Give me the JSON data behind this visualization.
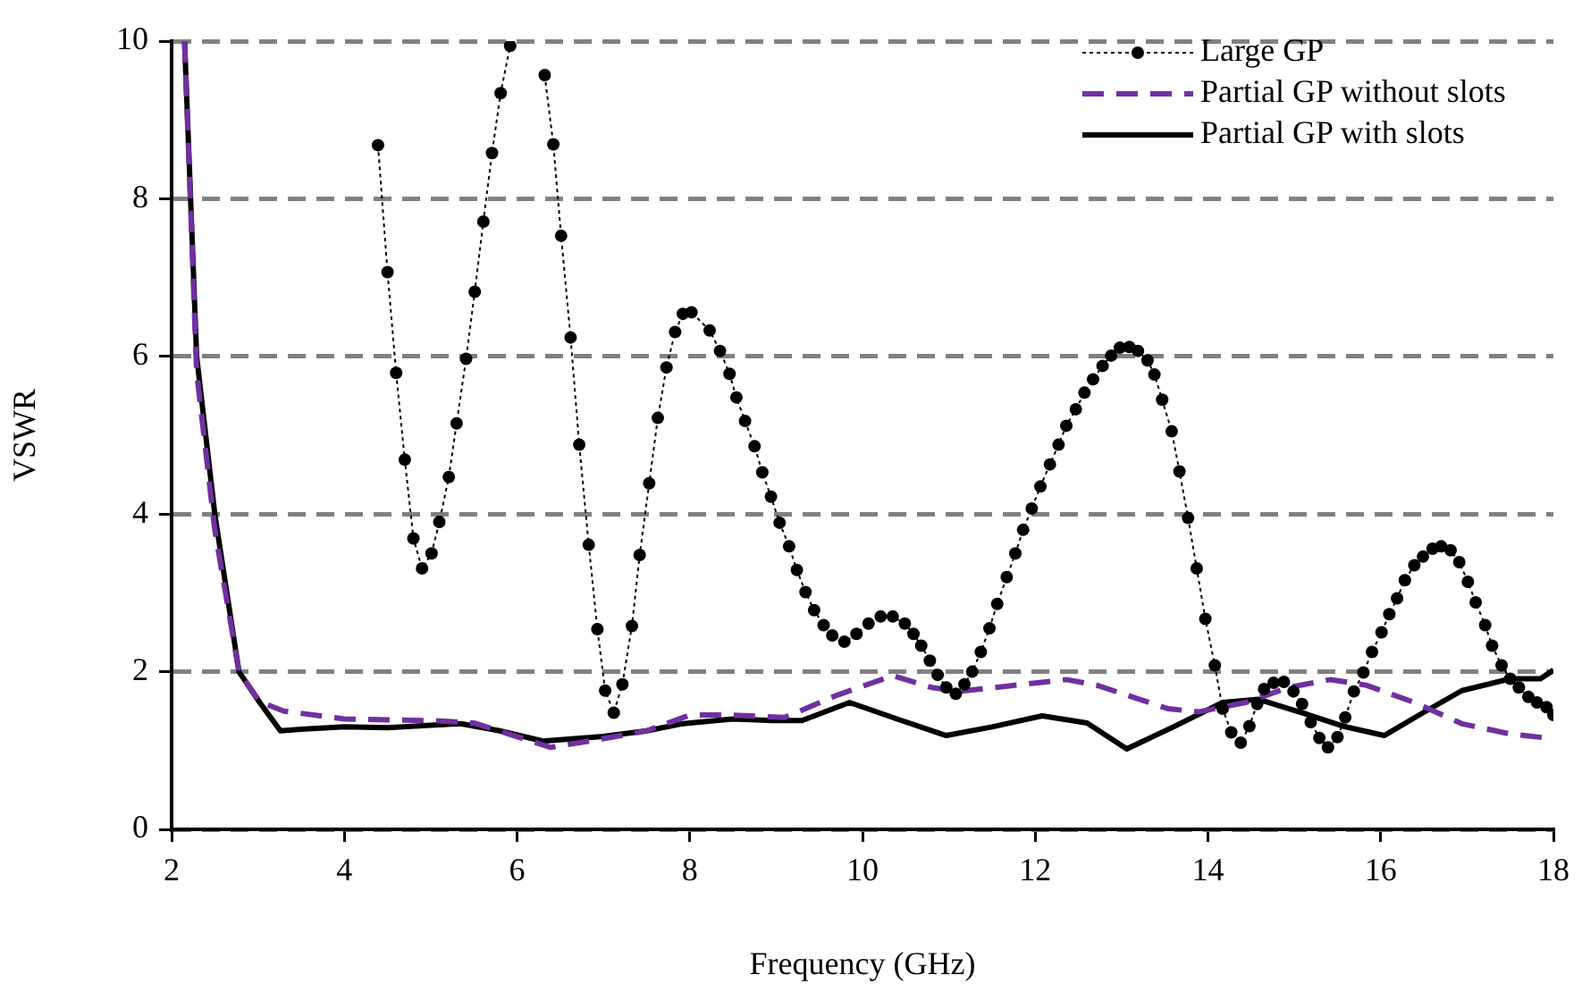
{
  "chart_data": {
    "type": "line",
    "xlabel": "Frequency (GHz)",
    "ylabel": "VSWR",
    "xlim": [
      2,
      18
    ],
    "xticks": [
      2,
      4,
      6,
      8,
      10,
      12,
      14,
      16,
      18
    ],
    "ylim": [
      0,
      10
    ],
    "yticks": [
      0,
      2,
      4,
      6,
      8,
      10
    ],
    "grid": "y",
    "legend": "top right",
    "series": [
      {
        "name": "Large GP",
        "color": "#000000",
        "marker": "circle",
        "line_style": "dotted",
        "x": [
          4.39,
          4.5,
          4.6,
          4.7,
          4.8,
          4.9,
          5.01,
          5.1,
          5.21,
          5.3,
          5.41,
          5.51,
          5.61,
          5.71,
          5.81,
          5.92,
          6.1,
          6.32,
          6.42,
          6.51,
          6.62,
          6.72,
          6.83,
          6.93,
          7.02,
          7.12,
          7.22,
          7.33,
          7.42,
          7.53,
          7.63,
          7.73,
          7.83,
          7.92,
          8.02,
          8.23,
          8.35,
          8.46,
          8.54,
          8.64,
          8.75,
          8.84,
          8.94,
          9.04,
          9.15,
          9.24,
          9.34,
          9.44,
          9.55,
          9.65,
          9.79,
          9.93,
          10.07,
          10.21,
          10.35,
          10.49,
          10.59,
          10.68,
          10.78,
          10.87,
          10.97,
          11.08,
          11.18,
          11.27,
          11.37,
          11.47,
          11.56,
          11.67,
          11.77,
          11.86,
          11.96,
          12.06,
          12.17,
          12.27,
          12.36,
          12.47,
          12.57,
          12.67,
          12.78,
          12.88,
          12.98,
          13.09,
          13.19,
          13.3,
          13.38,
          13.47,
          13.58,
          13.67,
          13.77,
          13.87,
          13.97,
          14.08,
          14.17,
          14.27,
          14.38,
          14.48,
          14.57,
          14.65,
          14.76,
          14.88,
          14.99,
          15.09,
          15.19,
          15.29,
          15.39,
          15.5,
          15.59,
          15.69,
          15.8,
          15.9,
          16.01,
          16.1,
          16.19,
          16.28,
          16.39,
          16.49,
          16.6,
          16.7,
          16.81,
          16.91,
          17.01,
          17.1,
          17.21,
          17.29,
          17.4,
          17.5,
          17.6,
          17.71,
          17.81,
          17.92,
          18
        ],
        "values": [
          8.68,
          7.07,
          5.79,
          4.69,
          3.69,
          3.31,
          3.5,
          3.9,
          4.47,
          5.15,
          5.97,
          6.82,
          7.71,
          8.58,
          9.34,
          9.94,
          null,
          9.57,
          8.69,
          7.53,
          6.24,
          4.88,
          3.61,
          2.54,
          1.76,
          1.48,
          1.84,
          2.58,
          3.48,
          4.39,
          5.22,
          5.86,
          6.31,
          6.54,
          6.56,
          6.33,
          6.07,
          5.78,
          5.48,
          5.18,
          4.86,
          4.53,
          4.22,
          3.89,
          3.59,
          3.29,
          3.01,
          2.78,
          2.59,
          2.46,
          2.38,
          2.48,
          2.61,
          2.7,
          2.7,
          2.61,
          2.48,
          2.33,
          2.14,
          1.96,
          1.8,
          1.72,
          1.84,
          2.0,
          2.25,
          2.55,
          2.86,
          3.2,
          3.5,
          3.8,
          4.07,
          4.35,
          4.63,
          4.88,
          5.12,
          5.33,
          5.54,
          5.71,
          5.88,
          6.01,
          6.11,
          6.12,
          6.07,
          5.95,
          5.77,
          5.45,
          5.05,
          4.54,
          3.95,
          3.31,
          2.67,
          2.08,
          1.53,
          1.23,
          1.1,
          1.31,
          1.59,
          1.78,
          1.86,
          1.87,
          1.75,
          1.59,
          1.36,
          1.16,
          1.04,
          1.17,
          1.42,
          1.75,
          1.99,
          2.25,
          2.5,
          2.73,
          2.93,
          3.16,
          3.35,
          3.46,
          3.56,
          3.59,
          3.54,
          3.39,
          3.14,
          2.88,
          2.59,
          2.33,
          2.08,
          1.91,
          1.8,
          1.68,
          1.61,
          1.55,
          1.45
        ]
      },
      {
        "name": "Partial GP without slots",
        "color": "#7030a0",
        "marker": "none",
        "line_style": "dashed",
        "x": [
          2.15,
          2.29,
          2.5,
          2.78,
          3.02,
          3.3,
          4,
          5,
          5.5,
          6.39,
          7,
          7.5,
          8,
          8.5,
          9.1,
          9.7,
          10.35,
          10.8,
          11.11,
          11.7,
          12.36,
          12.71,
          13.54,
          13.89,
          14.44,
          14.93,
          15.42,
          15.83,
          16.39,
          16.94,
          17.5,
          18
        ],
        "values": [
          10,
          5.8,
          3.8,
          2.0,
          1.62,
          1.5,
          1.4,
          1.38,
          1.35,
          1.04,
          1.15,
          1.25,
          1.45,
          1.45,
          1.42,
          1.7,
          1.95,
          1.8,
          1.75,
          1.82,
          1.9,
          1.83,
          1.53,
          1.49,
          1.61,
          1.8,
          1.9,
          1.83,
          1.61,
          1.34,
          1.21,
          1.15
        ]
      },
      {
        "name": "Partial GP with slots",
        "color": "#000000",
        "marker": "none",
        "line_style": "solid",
        "x": [
          2.15,
          2.29,
          2.5,
          2.78,
          3.02,
          3.26,
          3.5,
          4,
          4.5,
          5,
          5.35,
          5.8,
          6.3,
          7,
          7.5,
          7.92,
          8.5,
          8.96,
          9.3,
          9.85,
          10.4,
          10.97,
          11.5,
          12.08,
          12.6,
          13.06,
          13.6,
          14.17,
          14.58,
          15.14,
          15.56,
          16.04,
          16.46,
          16.94,
          17.5,
          17.85,
          18
        ],
        "values": [
          10,
          6,
          4,
          2,
          1.61,
          1.25,
          1.27,
          1.3,
          1.29,
          1.32,
          1.34,
          1.25,
          1.12,
          1.18,
          1.25,
          1.34,
          1.4,
          1.38,
          1.38,
          1.61,
          1.4,
          1.19,
          1.3,
          1.44,
          1.35,
          1.02,
          1.3,
          1.61,
          1.65,
          1.46,
          1.31,
          1.19,
          1.46,
          1.76,
          1.91,
          1.91,
          2.02
        ]
      }
    ]
  }
}
